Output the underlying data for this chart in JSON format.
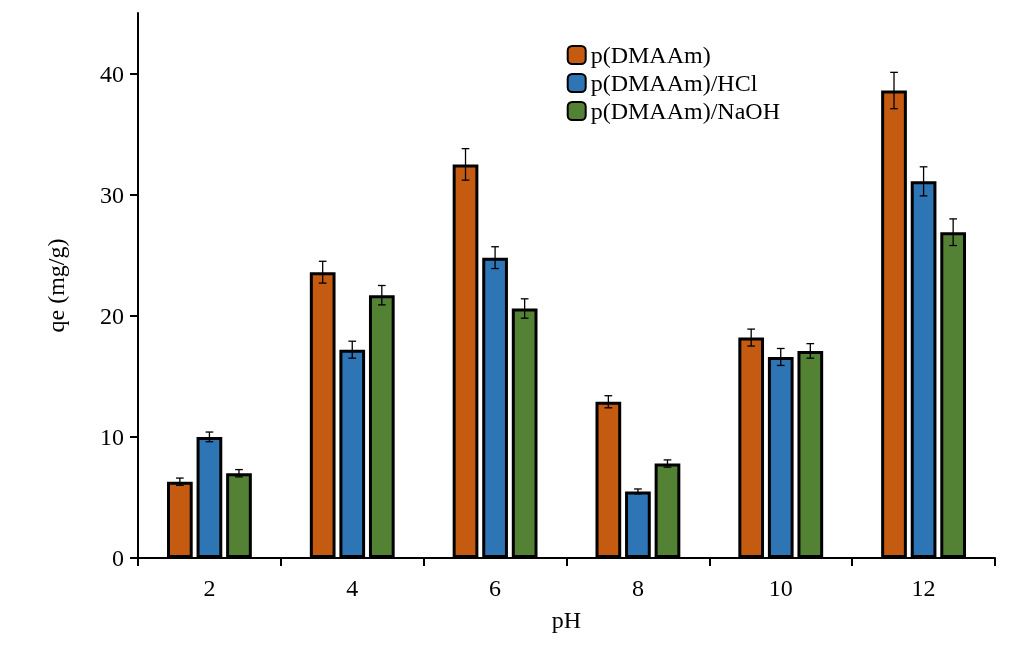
{
  "chart_data": {
    "type": "bar",
    "xlabel": "pH",
    "ylabel": "qe (mg/g)",
    "categories": [
      "2",
      "4",
      "6",
      "8",
      "10",
      "12"
    ],
    "series": [
      {
        "name": "p(DMAAm)",
        "color": "#c55a11",
        "values": [
          6.3,
          23.6,
          32.5,
          12.9,
          18.2,
          38.6
        ],
        "errors": [
          0.3,
          0.9,
          1.3,
          0.5,
          0.7,
          1.5
        ]
      },
      {
        "name": "p(DMAAm)/HCl",
        "color": "#2e75b6",
        "values": [
          10.0,
          17.2,
          24.8,
          5.5,
          16.6,
          31.1
        ],
        "errors": [
          0.4,
          0.7,
          0.9,
          0.2,
          0.7,
          1.2
        ]
      },
      {
        "name": "p(DMAAm)/NaOH",
        "color": "#548235",
        "values": [
          7.0,
          21.7,
          20.6,
          7.8,
          17.1,
          26.9
        ],
        "errors": [
          0.3,
          0.8,
          0.8,
          0.3,
          0.6,
          1.1
        ]
      }
    ],
    "ylim": [
      0,
      45
    ],
    "yticks": [
      0,
      10,
      20,
      30,
      40
    ],
    "grid": false,
    "legend": "top right"
  }
}
